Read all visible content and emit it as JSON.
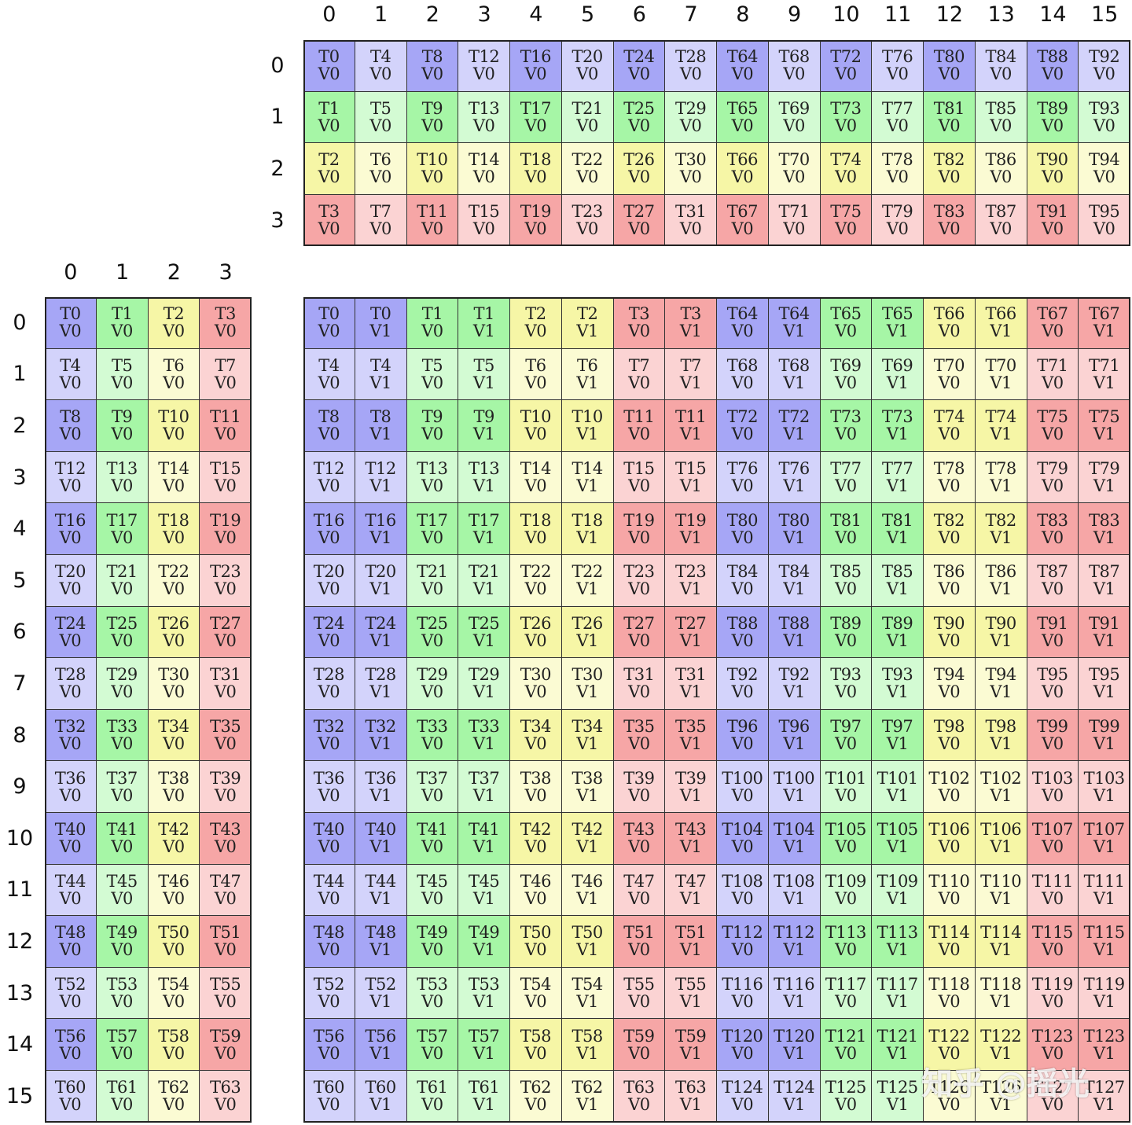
{
  "colors": {
    "c0_dark": "#a6a6f6",
    "c0_light": "#d3d3fb",
    "c1_dark": "#a6f6a6",
    "c1_light": "#d3fbd3",
    "c2_dark": "#f6f6a6",
    "c2_light": "#fbfbd3",
    "c3_dark": "#f6a6a6",
    "c3_light": "#fbd3d3"
  },
  "top_grid": {
    "col_labels": [
      "0",
      "1",
      "2",
      "3",
      "4",
      "5",
      "6",
      "7",
      "8",
      "9",
      "10",
      "11",
      "12",
      "13",
      "14",
      "15"
    ],
    "row_labels": [
      "0",
      "1",
      "2",
      "3"
    ],
    "rows": [
      [
        "T0",
        "T4",
        "T8",
        "T12",
        "T16",
        "T20",
        "T24",
        "T28",
        "T64",
        "T68",
        "T72",
        "T76",
        "T80",
        "T84",
        "T88",
        "T92"
      ],
      [
        "T1",
        "T5",
        "T9",
        "T13",
        "T17",
        "T21",
        "T25",
        "T29",
        "T65",
        "T69",
        "T73",
        "T77",
        "T81",
        "T85",
        "T89",
        "T93"
      ],
      [
        "T2",
        "T6",
        "T10",
        "T14",
        "T18",
        "T22",
        "T26",
        "T30",
        "T66",
        "T70",
        "T74",
        "T78",
        "T82",
        "T86",
        "T90",
        "T94"
      ],
      [
        "T3",
        "T7",
        "T11",
        "T15",
        "T19",
        "T23",
        "T27",
        "T31",
        "T67",
        "T71",
        "T75",
        "T79",
        "T83",
        "T87",
        "T91",
        "T95"
      ]
    ],
    "value_label": "V0"
  },
  "left_grid": {
    "col_labels": [
      "0",
      "1",
      "2",
      "3"
    ],
    "row_labels": [
      "0",
      "1",
      "2",
      "3",
      "4",
      "5",
      "6",
      "7",
      "8",
      "9",
      "10",
      "11",
      "12",
      "13",
      "14",
      "15"
    ],
    "rows": [
      [
        "T0",
        "T1",
        "T2",
        "T3"
      ],
      [
        "T4",
        "T5",
        "T6",
        "T7"
      ],
      [
        "T8",
        "T9",
        "T10",
        "T11"
      ],
      [
        "T12",
        "T13",
        "T14",
        "T15"
      ],
      [
        "T16",
        "T17",
        "T18",
        "T19"
      ],
      [
        "T20",
        "T21",
        "T22",
        "T23"
      ],
      [
        "T24",
        "T25",
        "T26",
        "T27"
      ],
      [
        "T28",
        "T29",
        "T30",
        "T31"
      ],
      [
        "T32",
        "T33",
        "T34",
        "T35"
      ],
      [
        "T36",
        "T37",
        "T38",
        "T39"
      ],
      [
        "T40",
        "T41",
        "T42",
        "T43"
      ],
      [
        "T44",
        "T45",
        "T46",
        "T47"
      ],
      [
        "T48",
        "T49",
        "T50",
        "T51"
      ],
      [
        "T52",
        "T53",
        "T54",
        "T55"
      ],
      [
        "T56",
        "T57",
        "T58",
        "T59"
      ],
      [
        "T60",
        "T61",
        "T62",
        "T63"
      ]
    ],
    "value_label": "V0"
  },
  "main_grid": {
    "rows": [
      [
        "T0",
        "T0",
        "T1",
        "T1",
        "T2",
        "T2",
        "T3",
        "T3",
        "T64",
        "T64",
        "T65",
        "T65",
        "T66",
        "T66",
        "T67",
        "T67"
      ],
      [
        "T4",
        "T4",
        "T5",
        "T5",
        "T6",
        "T6",
        "T7",
        "T7",
        "T68",
        "T68",
        "T69",
        "T69",
        "T70",
        "T70",
        "T71",
        "T71"
      ],
      [
        "T8",
        "T8",
        "T9",
        "T9",
        "T10",
        "T10",
        "T11",
        "T11",
        "T72",
        "T72",
        "T73",
        "T73",
        "T74",
        "T74",
        "T75",
        "T75"
      ],
      [
        "T12",
        "T12",
        "T13",
        "T13",
        "T14",
        "T14",
        "T15",
        "T15",
        "T76",
        "T76",
        "T77",
        "T77",
        "T78",
        "T78",
        "T79",
        "T79"
      ],
      [
        "T16",
        "T16",
        "T17",
        "T17",
        "T18",
        "T18",
        "T19",
        "T19",
        "T80",
        "T80",
        "T81",
        "T81",
        "T82",
        "T82",
        "T83",
        "T83"
      ],
      [
        "T20",
        "T20",
        "T21",
        "T21",
        "T22",
        "T22",
        "T23",
        "T23",
        "T84",
        "T84",
        "T85",
        "T85",
        "T86",
        "T86",
        "T87",
        "T87"
      ],
      [
        "T24",
        "T24",
        "T25",
        "T25",
        "T26",
        "T26",
        "T27",
        "T27",
        "T88",
        "T88",
        "T89",
        "T89",
        "T90",
        "T90",
        "T91",
        "T91"
      ],
      [
        "T28",
        "T28",
        "T29",
        "T29",
        "T30",
        "T30",
        "T31",
        "T31",
        "T92",
        "T92",
        "T93",
        "T93",
        "T94",
        "T94",
        "T95",
        "T95"
      ],
      [
        "T32",
        "T32",
        "T33",
        "T33",
        "T34",
        "T34",
        "T35",
        "T35",
        "T96",
        "T96",
        "T97",
        "T97",
        "T98",
        "T98",
        "T99",
        "T99"
      ],
      [
        "T36",
        "T36",
        "T37",
        "T37",
        "T38",
        "T38",
        "T39",
        "T39",
        "T100",
        "T100",
        "T101",
        "T101",
        "T102",
        "T102",
        "T103",
        "T103"
      ],
      [
        "T40",
        "T40",
        "T41",
        "T41",
        "T42",
        "T42",
        "T43",
        "T43",
        "T104",
        "T104",
        "T105",
        "T105",
        "T106",
        "T106",
        "T107",
        "T107"
      ],
      [
        "T44",
        "T44",
        "T45",
        "T45",
        "T46",
        "T46",
        "T47",
        "T47",
        "T108",
        "T108",
        "T109",
        "T109",
        "T110",
        "T110",
        "T111",
        "T111"
      ],
      [
        "T48",
        "T48",
        "T49",
        "T49",
        "T50",
        "T50",
        "T51",
        "T51",
        "T112",
        "T112",
        "T113",
        "T113",
        "T114",
        "T114",
        "T115",
        "T115"
      ],
      [
        "T52",
        "T52",
        "T53",
        "T53",
        "T54",
        "T54",
        "T55",
        "T55",
        "T116",
        "T116",
        "T117",
        "T117",
        "T118",
        "T118",
        "T119",
        "T119"
      ],
      [
        "T56",
        "T56",
        "T57",
        "T57",
        "T58",
        "T58",
        "T59",
        "T59",
        "T120",
        "T120",
        "T121",
        "T121",
        "T122",
        "T122",
        "T123",
        "T123"
      ],
      [
        "T60",
        "T60",
        "T61",
        "T61",
        "T62",
        "T62",
        "T63",
        "T63",
        "T124",
        "T124",
        "T125",
        "T125",
        "T126",
        "T126",
        "T127",
        "T127"
      ]
    ],
    "value_labels": [
      "V0",
      "V1"
    ]
  },
  "watermark": "知乎 @摇光"
}
